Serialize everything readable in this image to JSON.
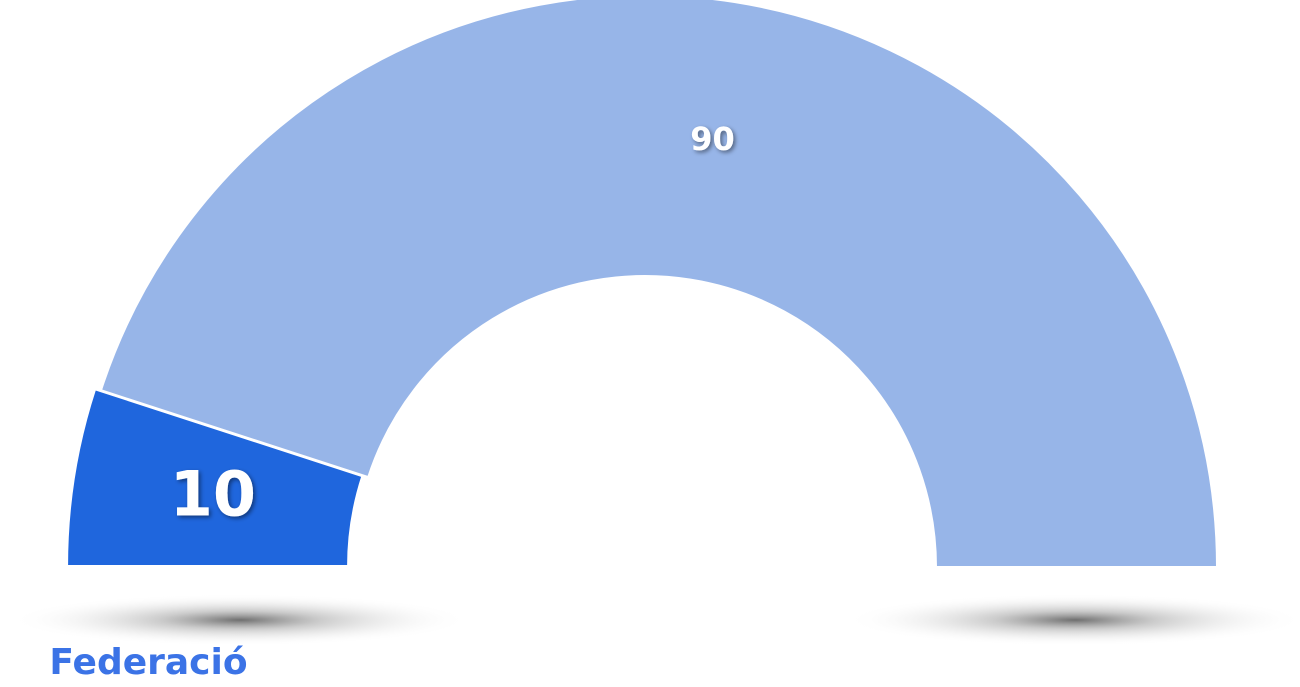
{
  "chart_data": {
    "type": "half-donut",
    "categories": [
      "Federació",
      null
    ],
    "values": [
      10,
      90
    ],
    "colors": [
      "#1f66dd",
      "#97b5e8"
    ]
  }
}
